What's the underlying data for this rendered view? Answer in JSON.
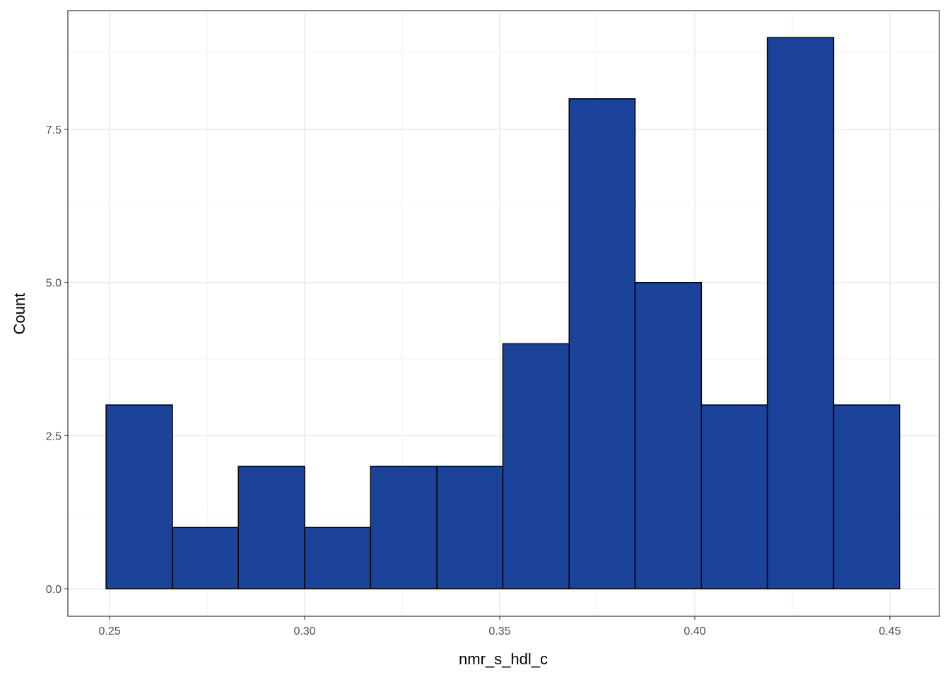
{
  "chart_data": {
    "type": "histogram",
    "x_label": "nmr_s_hdl_c",
    "y_label": "Count",
    "bins": [
      0.2491,
      0.2661,
      0.283,
      0.3,
      0.3169,
      0.3339,
      0.3508,
      0.3678,
      0.3847,
      0.4017,
      0.4186,
      0.4356,
      0.4525
    ],
    "counts": [
      3,
      1,
      2,
      1,
      2,
      2,
      4,
      8,
      5,
      3,
      9,
      3
    ],
    "color": "#1a4399",
    "edge_color": "#000000",
    "xlim": [
      0.2393,
      0.4627
    ],
    "ylim": [
      -0.45,
      9.44
    ],
    "xticks": [
      {
        "value": 0.25,
        "label": "0.25"
      },
      {
        "value": 0.3,
        "label": "0.30"
      },
      {
        "value": 0.35,
        "label": "0.35"
      },
      {
        "value": 0.4,
        "label": "0.40"
      },
      {
        "value": 0.45,
        "label": "0.45"
      }
    ],
    "yticks": [
      {
        "value": 0,
        "label": "0.0"
      },
      {
        "value": 2.5,
        "label": "2.5"
      },
      {
        "value": 5,
        "label": "5.0"
      },
      {
        "value": 7.5,
        "label": "7.5"
      }
    ],
    "grid": true
  }
}
